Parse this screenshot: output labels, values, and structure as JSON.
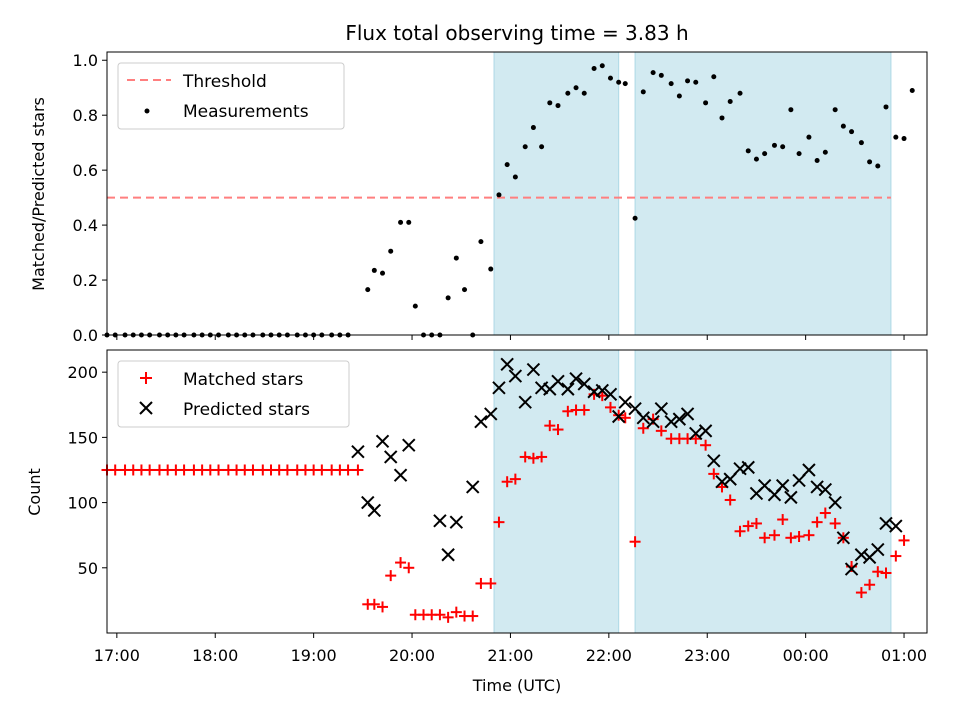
{
  "title": "Flux total observing time = 3.83 h",
  "colors": {
    "threshold": "#ff7f7f",
    "measurements": "#000000",
    "matched": "#ff0000",
    "predicted": "#000000",
    "shade": "#add8e6"
  },
  "chart_data": [
    {
      "type": "scatter",
      "panel": "top",
      "ylabel": "Matched/Predicted stars",
      "xlabel": "",
      "ylim": [
        0,
        1.03
      ],
      "yticks": [
        0.0,
        0.2,
        0.4,
        0.6,
        0.8,
        1.0
      ],
      "ytick_labels": [
        "0.0",
        "0.2",
        "0.4",
        "0.6",
        "0.8",
        "1.0"
      ],
      "xlim": [
        "16:54",
        "01:14"
      ],
      "shaded_spans": [
        [
          "20:50",
          "22:06"
        ],
        [
          "22:16",
          "00:52"
        ]
      ],
      "threshold": {
        "name": "Threshold",
        "y": 0.5,
        "x_range": [
          "16:54",
          "00:52"
        ]
      },
      "legend": {
        "position": "top-left",
        "entries": [
          "Threshold",
          "Measurements"
        ]
      },
      "series": [
        {
          "name": "Measurements",
          "marker": "dot",
          "points": [
            [
              "16:54",
              0
            ],
            [
              "16:59",
              0
            ],
            [
              "17:05",
              0
            ],
            [
              "17:10",
              0
            ],
            [
              "17:15",
              0
            ],
            [
              "17:20",
              0
            ],
            [
              "17:26",
              0
            ],
            [
              "17:31",
              0
            ],
            [
              "17:36",
              0
            ],
            [
              "17:41",
              0
            ],
            [
              "17:47",
              0
            ],
            [
              "17:52",
              0
            ],
            [
              "17:57",
              0
            ],
            [
              "18:02",
              0
            ],
            [
              "18:08",
              0
            ],
            [
              "18:13",
              0
            ],
            [
              "18:18",
              0
            ],
            [
              "18:23",
              0
            ],
            [
              "18:29",
              0
            ],
            [
              "18:34",
              0
            ],
            [
              "18:39",
              0
            ],
            [
              "18:44",
              0
            ],
            [
              "18:50",
              0
            ],
            [
              "18:55",
              0
            ],
            [
              "19:00",
              0
            ],
            [
              "19:05",
              0
            ],
            [
              "19:11",
              0
            ],
            [
              "19:16",
              0
            ],
            [
              "19:21",
              0
            ],
            [
              "19:33",
              0.165
            ],
            [
              "19:37",
              0.235
            ],
            [
              "19:42",
              0.225
            ],
            [
              "19:47",
              0.305
            ],
            [
              "19:53",
              0.41
            ],
            [
              "19:58",
              0.41
            ],
            [
              "20:02",
              0.105
            ],
            [
              "20:07",
              0
            ],
            [
              "20:12",
              0
            ],
            [
              "20:17",
              0
            ],
            [
              "20:22",
              0.135
            ],
            [
              "20:27",
              0.28
            ],
            [
              "20:32",
              0.165
            ],
            [
              "20:37",
              0
            ],
            [
              "20:42",
              0.34
            ],
            [
              "20:48",
              0.24
            ],
            [
              "20:53",
              0.51
            ],
            [
              "20:58",
              0.62
            ],
            [
              "21:03",
              0.575
            ],
            [
              "21:09",
              0.685
            ],
            [
              "21:14",
              0.755
            ],
            [
              "21:19",
              0.685
            ],
            [
              "21:24",
              0.845
            ],
            [
              "21:29",
              0.835
            ],
            [
              "21:35",
              0.88
            ],
            [
              "21:40",
              0.9
            ],
            [
              "21:45",
              0.88
            ],
            [
              "21:51",
              0.97
            ],
            [
              "21:56",
              0.98
            ],
            [
              "22:01",
              0.935
            ],
            [
              "22:06",
              0.92
            ],
            [
              "22:10",
              0.915
            ],
            [
              "22:16",
              0.425
            ],
            [
              "22:21",
              0.885
            ],
            [
              "22:27",
              0.955
            ],
            [
              "22:32",
              0.945
            ],
            [
              "22:38",
              0.915
            ],
            [
              "22:43",
              0.87
            ],
            [
              "22:48",
              0.925
            ],
            [
              "22:53",
              0.92
            ],
            [
              "22:59",
              0.845
            ],
            [
              "23:04",
              0.94
            ],
            [
              "23:09",
              0.79
            ],
            [
              "23:14",
              0.85
            ],
            [
              "23:20",
              0.88
            ],
            [
              "23:25",
              0.67
            ],
            [
              "23:30",
              0.64
            ],
            [
              "23:35",
              0.66
            ],
            [
              "23:41",
              0.69
            ],
            [
              "23:46",
              0.685
            ],
            [
              "23:51",
              0.82
            ],
            [
              "23:56",
              0.66
            ],
            [
              "00:02",
              0.72
            ],
            [
              "00:07",
              0.635
            ],
            [
              "00:12",
              0.665
            ],
            [
              "00:18",
              0.82
            ],
            [
              "00:23",
              0.76
            ],
            [
              "00:28",
              0.74
            ],
            [
              "00:34",
              0.7
            ],
            [
              "00:39",
              0.63
            ],
            [
              "00:44",
              0.615
            ],
            [
              "00:49",
              0.83
            ],
            [
              "00:55",
              0.72
            ],
            [
              "01:00",
              0.715
            ],
            [
              "01:05",
              0.89
            ]
          ]
        }
      ]
    },
    {
      "type": "scatter",
      "panel": "bottom",
      "ylabel": "Count",
      "xlabel": "Time (UTC)",
      "ylim": [
        0,
        217
      ],
      "yticks": [
        50,
        100,
        150,
        200
      ],
      "ytick_labels": [
        "50",
        "100",
        "150",
        "200"
      ],
      "xlim": [
        "16:54",
        "01:14"
      ],
      "xticks": [
        "17:00",
        "18:00",
        "19:00",
        "20:00",
        "21:00",
        "22:00",
        "23:00",
        "00:00",
        "01:00"
      ],
      "xtick_labels": [
        "17:00",
        "18:00",
        "19:00",
        "20:00",
        "21:00",
        "22:00",
        "23:00",
        "00:00",
        "01:00"
      ],
      "shaded_spans": [
        [
          "20:50",
          "22:06"
        ],
        [
          "22:16",
          "00:52"
        ]
      ],
      "legend": {
        "position": "top-left",
        "entries": [
          "Matched stars",
          "Predicted stars"
        ]
      },
      "series": [
        {
          "name": "Matched stars",
          "marker": "plus",
          "points": [
            [
              "16:54",
              125
            ],
            [
              "16:59",
              125
            ],
            [
              "17:05",
              125
            ],
            [
              "17:10",
              125
            ],
            [
              "17:15",
              125
            ],
            [
              "17:20",
              125
            ],
            [
              "17:26",
              125
            ],
            [
              "17:31",
              125
            ],
            [
              "17:36",
              125
            ],
            [
              "17:41",
              125
            ],
            [
              "17:47",
              125
            ],
            [
              "17:52",
              125
            ],
            [
              "17:57",
              125
            ],
            [
              "18:02",
              125
            ],
            [
              "18:08",
              125
            ],
            [
              "18:13",
              125
            ],
            [
              "18:18",
              125
            ],
            [
              "18:23",
              125
            ],
            [
              "18:29",
              125
            ],
            [
              "18:34",
              125
            ],
            [
              "18:39",
              125
            ],
            [
              "18:44",
              125
            ],
            [
              "18:50",
              125
            ],
            [
              "18:55",
              125
            ],
            [
              "19:00",
              125
            ],
            [
              "19:05",
              125
            ],
            [
              "19:11",
              125
            ],
            [
              "19:16",
              125
            ],
            [
              "19:21",
              125
            ],
            [
              "19:27",
              125
            ],
            [
              "19:33",
              22
            ],
            [
              "19:37",
              22
            ],
            [
              "19:42",
              20
            ],
            [
              "19:47",
              44
            ],
            [
              "19:53",
              54
            ],
            [
              "19:58",
              50
            ],
            [
              "20:02",
              14
            ],
            [
              "20:07",
              14
            ],
            [
              "20:12",
              14
            ],
            [
              "20:17",
              14
            ],
            [
              "20:22",
              12
            ],
            [
              "20:27",
              16
            ],
            [
              "20:32",
              13
            ],
            [
              "20:37",
              13
            ],
            [
              "20:42",
              38
            ],
            [
              "20:48",
              38
            ],
            [
              "20:53",
              85
            ],
            [
              "20:58",
              116
            ],
            [
              "21:03",
              118
            ],
            [
              "21:09",
              135
            ],
            [
              "21:14",
              134
            ],
            [
              "21:19",
              135
            ],
            [
              "21:24",
              159
            ],
            [
              "21:29",
              156
            ],
            [
              "21:35",
              170
            ],
            [
              "21:40",
              171
            ],
            [
              "21:45",
              171
            ],
            [
              "21:51",
              183
            ],
            [
              "21:56",
              182
            ],
            [
              "22:01",
              173
            ],
            [
              "22:06",
              167
            ],
            [
              "22:10",
              165
            ],
            [
              "22:16",
              70
            ],
            [
              "22:21",
              157
            ],
            [
              "22:27",
              164
            ],
            [
              "22:32",
              155
            ],
            [
              "22:38",
              149
            ],
            [
              "22:43",
              149
            ],
            [
              "22:48",
              149
            ],
            [
              "22:53",
              149
            ],
            [
              "22:59",
              144
            ],
            [
              "23:04",
              122
            ],
            [
              "23:09",
              112
            ],
            [
              "23:14",
              102
            ],
            [
              "23:20",
              78
            ],
            [
              "23:25",
              82
            ],
            [
              "23:30",
              84
            ],
            [
              "23:35",
              73
            ],
            [
              "23:41",
              75
            ],
            [
              "23:46",
              87
            ],
            [
              "23:51",
              73
            ],
            [
              "23:56",
              74
            ],
            [
              "00:02",
              75
            ],
            [
              "00:07",
              85
            ],
            [
              "00:12",
              92
            ],
            [
              "00:18",
              84
            ],
            [
              "00:23",
              73
            ],
            [
              "00:28",
              51
            ],
            [
              "00:34",
              31
            ],
            [
              "00:39",
              37
            ],
            [
              "00:44",
              47
            ],
            [
              "00:49",
              46
            ],
            [
              "00:55",
              59
            ],
            [
              "01:00",
              71
            ]
          ]
        },
        {
          "name": "Predicted stars",
          "marker": "x",
          "points": [
            [
              "19:27",
              139
            ],
            [
              "19:33",
              100
            ],
            [
              "19:37",
              94
            ],
            [
              "19:42",
              147
            ],
            [
              "19:47",
              135
            ],
            [
              "19:53",
              121
            ],
            [
              "19:58",
              144
            ],
            [
              "20:17",
              86
            ],
            [
              "20:22",
              60
            ],
            [
              "20:27",
              85
            ],
            [
              "20:37",
              112
            ],
            [
              "20:42",
              162
            ],
            [
              "20:48",
              168
            ],
            [
              "20:53",
              188
            ],
            [
              "20:58",
              206
            ],
            [
              "21:03",
              197
            ],
            [
              "21:09",
              177
            ],
            [
              "21:14",
              202
            ],
            [
              "21:19",
              188
            ],
            [
              "21:24",
              187
            ],
            [
              "21:29",
              193
            ],
            [
              "21:35",
              187
            ],
            [
              "21:40",
              195
            ],
            [
              "21:45",
              191
            ],
            [
              "21:51",
              185
            ],
            [
              "21:56",
              186
            ],
            [
              "22:01",
              183
            ],
            [
              "22:06",
              166
            ],
            [
              "22:10",
              177
            ],
            [
              "22:16",
              172
            ],
            [
              "22:21",
              165
            ],
            [
              "22:27",
              162
            ],
            [
              "22:32",
              172
            ],
            [
              "22:38",
              162
            ],
            [
              "22:43",
              164
            ],
            [
              "22:48",
              168
            ],
            [
              "22:53",
              153
            ],
            [
              "22:59",
              155
            ],
            [
              "23:04",
              132
            ],
            [
              "23:09",
              116
            ],
            [
              "23:14",
              118
            ],
            [
              "23:20",
              126
            ],
            [
              "23:25",
              127
            ],
            [
              "23:30",
              107
            ],
            [
              "23:35",
              113
            ],
            [
              "23:41",
              106
            ],
            [
              "23:46",
              113
            ],
            [
              "23:51",
              104
            ],
            [
              "23:56",
              117
            ],
            [
              "00:02",
              125
            ],
            [
              "00:07",
              112
            ],
            [
              "00:12",
              110
            ],
            [
              "00:18",
              100
            ],
            [
              "00:23",
              73
            ],
            [
              "00:28",
              49
            ],
            [
              "00:34",
              60
            ],
            [
              "00:39",
              58
            ],
            [
              "00:44",
              64
            ],
            [
              "00:49",
              84
            ],
            [
              "00:55",
              82
            ]
          ]
        }
      ]
    }
  ]
}
